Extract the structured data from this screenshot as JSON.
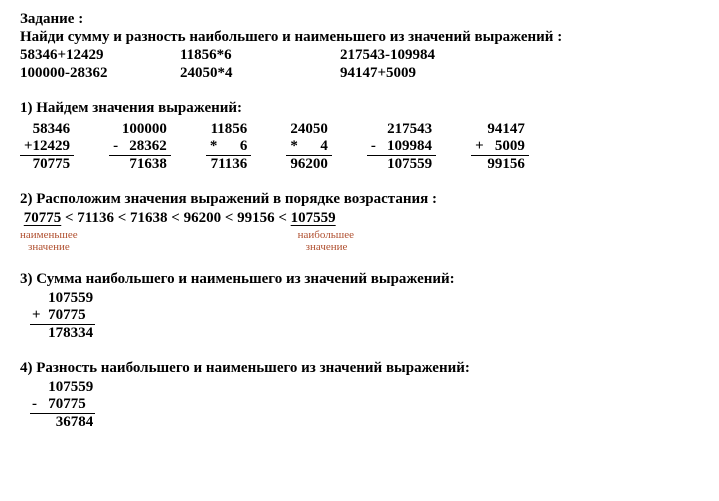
{
  "header": {
    "title": "Задание :",
    "instruction": "Найди сумму и разность наибольшего и наименьшего из значений выражений :"
  },
  "problems": {
    "r1c1": "58346+12429",
    "r1c2": "11856*6",
    "r1c3": "217543-109984",
    "r2c1": "100000-28362",
    "r2c2": "24050*4",
    "r2c3": "94147+5009"
  },
  "step1": {
    "title": "1)   Найдем значения выражений:",
    "cols": [
      {
        "a": "58346",
        "op": "+",
        "b": "12429",
        "r": "70775"
      },
      {
        "a": "100000",
        "op": "-",
        "b": "28362",
        "r": "71638",
        "indent": true
      },
      {
        "a": "11856",
        "op": "*",
        "b": "6",
        "r": "71136",
        "mul": true
      },
      {
        "a": "24050",
        "op": "*",
        "b": "4",
        "r": "96200",
        "mul": true
      },
      {
        "a": "217543",
        "op": "-",
        "b": "109984",
        "r": "107559",
        "indent": true
      },
      {
        "a": "94147",
        "op": "+",
        "b": "5009",
        "r": "99156",
        "indent": true
      }
    ]
  },
  "step2": {
    "title": "2)  Расположим значения выражений в порядке  возрастания :",
    "chain_pre": "70775",
    "chain_mid": " < 71136  <  71638  <   96200 <  99156 <  ",
    "chain_post": "107559",
    "label_min1": "наименьшее",
    "label_min2": "значение",
    "label_max1": "наибольшее",
    "label_max2": "значение"
  },
  "step3": {
    "title": "3) Сумма наибольшего  и наименьшего   из   значений выражений:",
    "a": "107559",
    "op": "+",
    "b": "70775",
    "r": "178334"
  },
  "step4": {
    "title": "4) Разность  наибольшего и наименьшего   из   значений выражений:",
    "a": "107559",
    "op": "-",
    "b": "70775",
    "r": "36784"
  }
}
